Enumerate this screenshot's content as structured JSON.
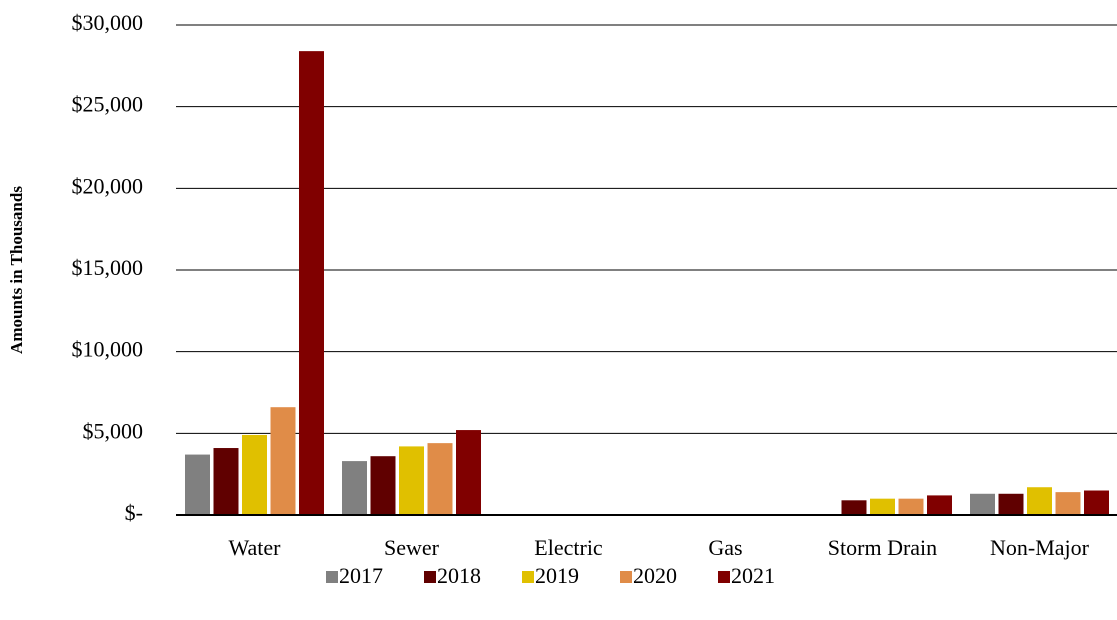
{
  "chart_data": {
    "type": "bar",
    "y_label": "Amounts in Thousands",
    "categories": [
      "Water",
      "Sewer",
      "Electric",
      "Gas",
      "Storm Drain",
      "Non-Major"
    ],
    "series": [
      {
        "name": "2017",
        "color": "#808080",
        "values": [
          3700,
          3300,
          50,
          30,
          0,
          1300
        ]
      },
      {
        "name": "2018",
        "color": "#600000",
        "values": [
          4100,
          3600,
          50,
          30,
          900,
          1300
        ]
      },
      {
        "name": "2019",
        "color": "#e0c000",
        "values": [
          4900,
          4200,
          50,
          30,
          1000,
          1700
        ]
      },
      {
        "name": "2020",
        "color": "#e08c48",
        "values": [
          6600,
          4400,
          50,
          30,
          1000,
          1400
        ]
      },
      {
        "name": "2021",
        "color": "#800000",
        "values": [
          28400,
          5200,
          50,
          30,
          1200,
          1500
        ]
      }
    ],
    "ylim": [
      0,
      30000
    ],
    "yticks": [
      {
        "value": 0,
        "label": "$-"
      },
      {
        "value": 5000,
        "label": "$5,000"
      },
      {
        "value": 10000,
        "label": "$10,000"
      },
      {
        "value": 15000,
        "label": "$15,000"
      },
      {
        "value": 20000,
        "label": "$20,000"
      },
      {
        "value": 25000,
        "label": "$25,000"
      },
      {
        "value": 30000,
        "label": "$30,000"
      }
    ],
    "grid": true,
    "legend": "bottom"
  }
}
